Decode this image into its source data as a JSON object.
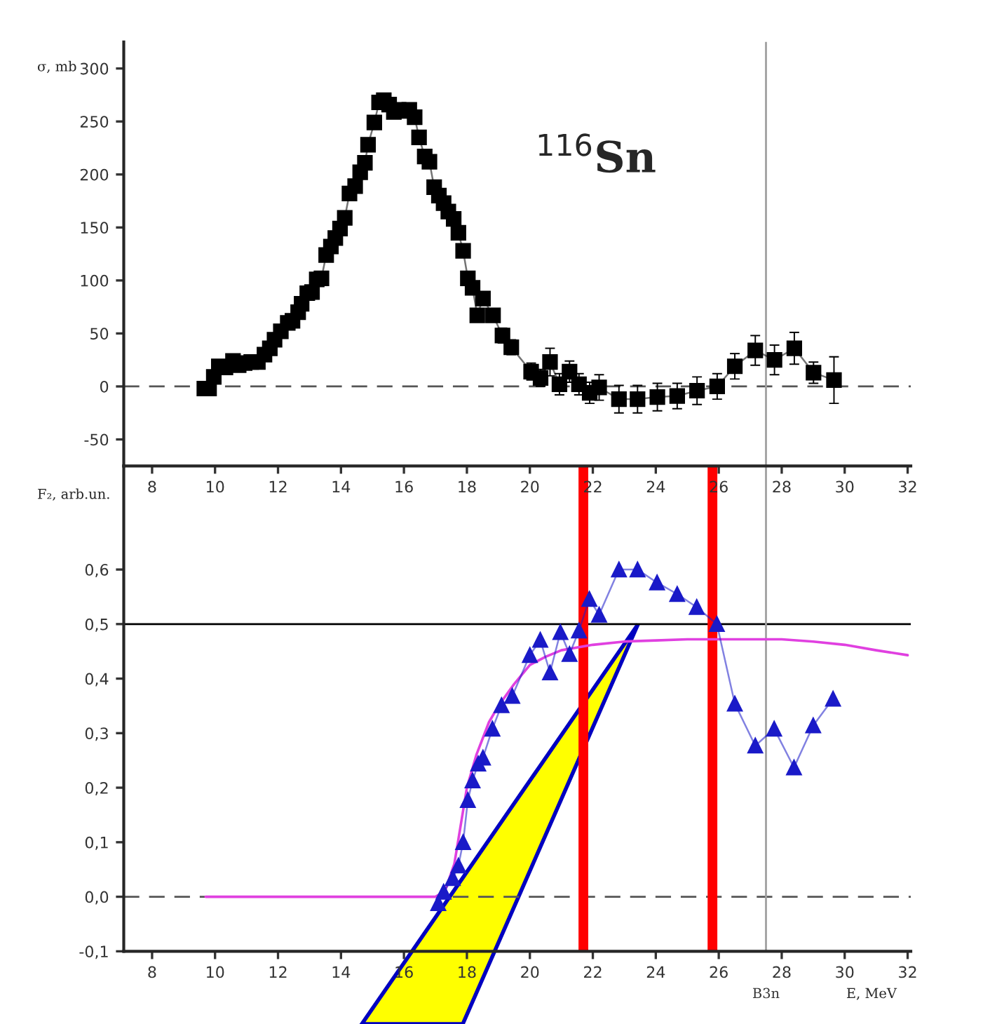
{
  "chart_data": [
    {
      "type": "line",
      "ylabel": "σ, mb",
      "annotations": [
        "$^{116}$Sn"
      ],
      "xlim": [
        7.1,
        32.1
      ],
      "xticks": [
        8,
        10,
        12,
        14,
        16,
        18,
        20,
        22,
        24,
        26,
        28,
        30,
        32
      ],
      "ylim": [
        -75,
        325
      ],
      "yticks": [
        -50,
        0,
        50,
        100,
        150,
        200,
        250,
        300
      ],
      "grid": false,
      "legend": false,
      "ref_lines": [
        {
          "axis": "y",
          "value": 0,
          "color": "#555555",
          "line_style": "dashed"
        },
        {
          "axis": "x",
          "value": 27.5,
          "color": "#a0a0a0",
          "line_style": "solid"
        }
      ],
      "series": [
        {
          "color": "#000000",
          "marker": "square",
          "line_style": "solid",
          "x": [
            9.66,
            9.81,
            9.96,
            10.12,
            10.33,
            10.57,
            10.75,
            10.94,
            11.15,
            11.36,
            11.57,
            11.74,
            11.89,
            12.09,
            12.31,
            12.46,
            12.64,
            12.75,
            12.93,
            13.08,
            13.23,
            13.38,
            13.53,
            13.68,
            13.82,
            13.97,
            14.12,
            14.27,
            14.45,
            14.61,
            14.76,
            14.86,
            15.06,
            15.21,
            15.36,
            15.53,
            15.68,
            15.83,
            15.98,
            16.17,
            16.34,
            16.48,
            16.66,
            16.81,
            16.96,
            17.11,
            17.26,
            17.41,
            17.58,
            17.73,
            17.88,
            18.03,
            18.18,
            18.33,
            18.51,
            18.83,
            19.13,
            19.41,
            20.04,
            20.34,
            20.64,
            20.94,
            21.26,
            21.56,
            21.9,
            22.2,
            22.83,
            23.42,
            24.05,
            24.68,
            25.31,
            25.95,
            26.51,
            27.16,
            27.77,
            28.4,
            29.01,
            29.66
          ],
          "values": [
            -2,
            -2,
            9,
            19,
            18,
            24,
            20,
            22,
            23,
            23,
            30,
            36,
            44,
            52,
            60,
            62,
            70,
            78,
            88,
            89,
            101,
            102,
            124,
            132,
            140,
            149,
            159,
            182,
            189,
            202,
            211,
            228,
            249,
            268,
            270,
            266,
            259,
            261,
            260,
            261,
            254,
            235,
            217,
            212,
            188,
            180,
            173,
            165,
            158,
            145,
            128,
            102,
            93,
            67,
            83,
            67,
            48,
            37,
            14,
            8,
            23,
            2,
            14,
            2,
            -6,
            -1,
            -12,
            -12,
            -10,
            -9,
            -4,
            0,
            19,
            34,
            25,
            36,
            13,
            6
          ],
          "errors": [
            6,
            6,
            6,
            6,
            6,
            6,
            6,
            6,
            6,
            6,
            6,
            6,
            6,
            6,
            6,
            6,
            6,
            6,
            6,
            6,
            6,
            6,
            6,
            6,
            6,
            6,
            6,
            6,
            6,
            6,
            6,
            6,
            6,
            6,
            6,
            6,
            6,
            6,
            6,
            6,
            6,
            6,
            6,
            6,
            6,
            6,
            6,
            6,
            6,
            6,
            6,
            6,
            6,
            6,
            6,
            6,
            7,
            7,
            8,
            8,
            13,
            10,
            10,
            10,
            10,
            12,
            13,
            13,
            13,
            12,
            13,
            12,
            12,
            14,
            14,
            15,
            10,
            22
          ]
        }
      ]
    },
    {
      "type": "line",
      "ylabel": "F₂, arb.un.",
      "xlabel": "E, MeV",
      "xlim": [
        7.1,
        32.1
      ],
      "xticks": [
        8,
        10,
        12,
        14,
        16,
        18,
        20,
        22,
        24,
        26,
        28,
        30,
        32
      ],
      "ylim": [
        -0.1,
        0.79
      ],
      "yticks": [
        {
          "value": -0.1,
          "label": "-0,1"
        },
        {
          "value": 0.0,
          "label": "0,0"
        },
        {
          "value": 0.1,
          "label": "0,1"
        },
        {
          "value": 0.2,
          "label": "0,2"
        },
        {
          "value": 0.3,
          "label": "0,3"
        },
        {
          "value": 0.4,
          "label": "0,4"
        },
        {
          "value": 0.5,
          "label": "0,5"
        },
        {
          "value": 0.6,
          "label": "0,6"
        }
      ],
      "grid": false,
      "legend": false,
      "ref_lines": [
        {
          "axis": "y",
          "value": 0,
          "color": "#555555",
          "line_style": "dashed"
        },
        {
          "axis": "y",
          "value": 0.5,
          "color": "#000000",
          "line_style": "solid"
        },
        {
          "axis": "x",
          "value": 27.5,
          "color": "#a0a0a0",
          "line_style": "solid",
          "label": "B3n"
        },
        {
          "axis": "x",
          "value": 21.7,
          "color": "#ff0000",
          "line_style": "solid"
        },
        {
          "axis": "x",
          "value": 25.8,
          "color": "#ff0000",
          "line_style": "solid"
        }
      ],
      "series": [
        {
          "color": "#e040e0",
          "marker": "none",
          "line_style": "solid",
          "x": [
            9.7,
            12,
            14,
            16,
            17.0,
            17.3,
            17.6,
            17.8,
            18.0,
            18.3,
            18.7,
            19.0,
            19.5,
            20.0,
            20.5,
            21,
            22,
            23,
            24,
            25,
            26,
            27,
            28,
            29,
            30,
            31,
            32
          ],
          "values": [
            0,
            0,
            0,
            0,
            0,
            0.01,
            0.06,
            0.13,
            0.2,
            0.26,
            0.32,
            0.35,
            0.39,
            0.425,
            0.44,
            0.452,
            0.462,
            0.468,
            0.47,
            0.472,
            0.472,
            0.472,
            0.472,
            0.468,
            0.462,
            0.452,
            0.443
          ]
        },
        {
          "color": "#1a1ac8",
          "marker": "triangle",
          "line_style": "solid",
          "x": [
            17.09,
            17.26,
            17.55,
            17.73,
            17.88,
            18.03,
            18.18,
            18.36,
            18.51,
            18.81,
            19.1,
            19.44,
            20.0,
            20.33,
            20.64,
            20.97,
            21.26,
            21.56,
            21.89,
            22.2,
            22.83,
            23.42,
            24.04,
            24.68,
            25.3,
            25.94,
            26.51,
            27.16,
            27.76,
            28.39,
            29.0,
            29.63
          ],
          "values": [
            -0.012,
            0.009,
            0.034,
            0.057,
            0.1,
            0.177,
            0.213,
            0.244,
            0.255,
            0.308,
            0.351,
            0.368,
            0.443,
            0.471,
            0.411,
            0.485,
            0.445,
            0.488,
            0.546,
            0.517,
            0.6,
            0.6,
            0.576,
            0.555,
            0.531,
            0.5,
            0.354,
            0.277,
            0.308,
            0.237,
            0.314,
            0.363
          ]
        }
      ]
    }
  ]
}
